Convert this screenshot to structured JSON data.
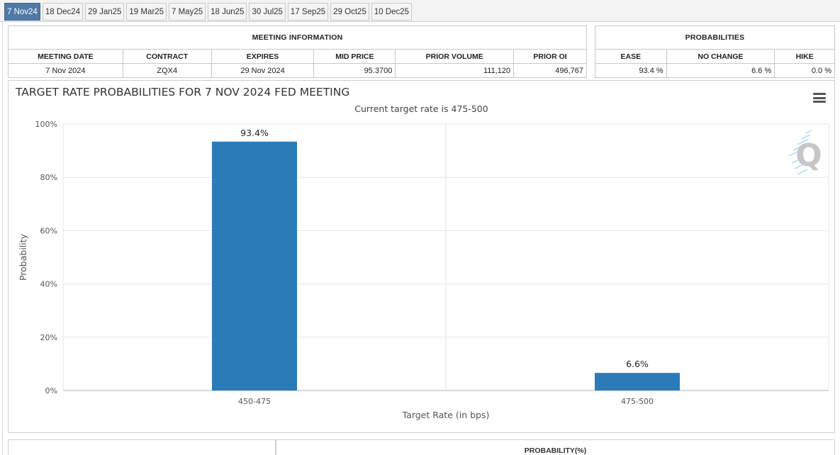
{
  "tabs": [
    {
      "label": "7 Nov24",
      "active": true
    },
    {
      "label": "18 Dec24"
    },
    {
      "label": "29 Jan25"
    },
    {
      "label": "19 Mar25"
    },
    {
      "label": "7 May25"
    },
    {
      "label": "18 Jun25"
    },
    {
      "label": "30 Jul25"
    },
    {
      "label": "17 Sep25"
    },
    {
      "label": "29 Oct25"
    },
    {
      "label": "10 Dec25"
    }
  ],
  "meeting_info": {
    "caption": "MEETING INFORMATION",
    "headers": [
      "MEETING DATE",
      "CONTRACT",
      "EXPIRES",
      "MID PRICE",
      "PRIOR VOLUME",
      "PRIOR OI"
    ],
    "row": [
      "7 Nov 2024",
      "ZQX4",
      "29 Nov 2024",
      "95.3700",
      "111,120",
      "496,767"
    ]
  },
  "probabilities": {
    "caption": "PROBABILITIES",
    "headers": [
      "EASE",
      "NO CHANGE",
      "HIKE"
    ],
    "row": [
      "93.4 %",
      "6.6 %",
      "0.0 %"
    ]
  },
  "chart": {
    "title": "TARGET RATE PROBABILITIES FOR 7 NOV 2024 FED MEETING",
    "subtitle": "Current target rate is 475-500"
  },
  "chart_data": {
    "type": "bar",
    "title": "TARGET RATE PROBABILITIES FOR 7 NOV 2024 FED MEETING",
    "subtitle": "Current target rate is 475-500",
    "categories": [
      "450-475",
      "475-500"
    ],
    "values": [
      93.4,
      6.6
    ],
    "data_labels": [
      "93.4%",
      "6.6%"
    ],
    "xlabel": "Target Rate (in bps)",
    "ylabel": "Probability",
    "ylim": [
      0,
      100
    ],
    "yticks": [
      "0%",
      "20%",
      "40%",
      "60%",
      "80%",
      "100%"
    ],
    "grid": true,
    "bar_color": "#2b7bb9"
  },
  "bottom": {
    "caption": "PROBABILITY(%)"
  },
  "colors": {
    "active_tab": "#4f79a6",
    "bar": "#2b7bb9"
  },
  "icons": {
    "menu": "hamburger-menu-icon",
    "logo": "quikstrike-q-logo"
  }
}
